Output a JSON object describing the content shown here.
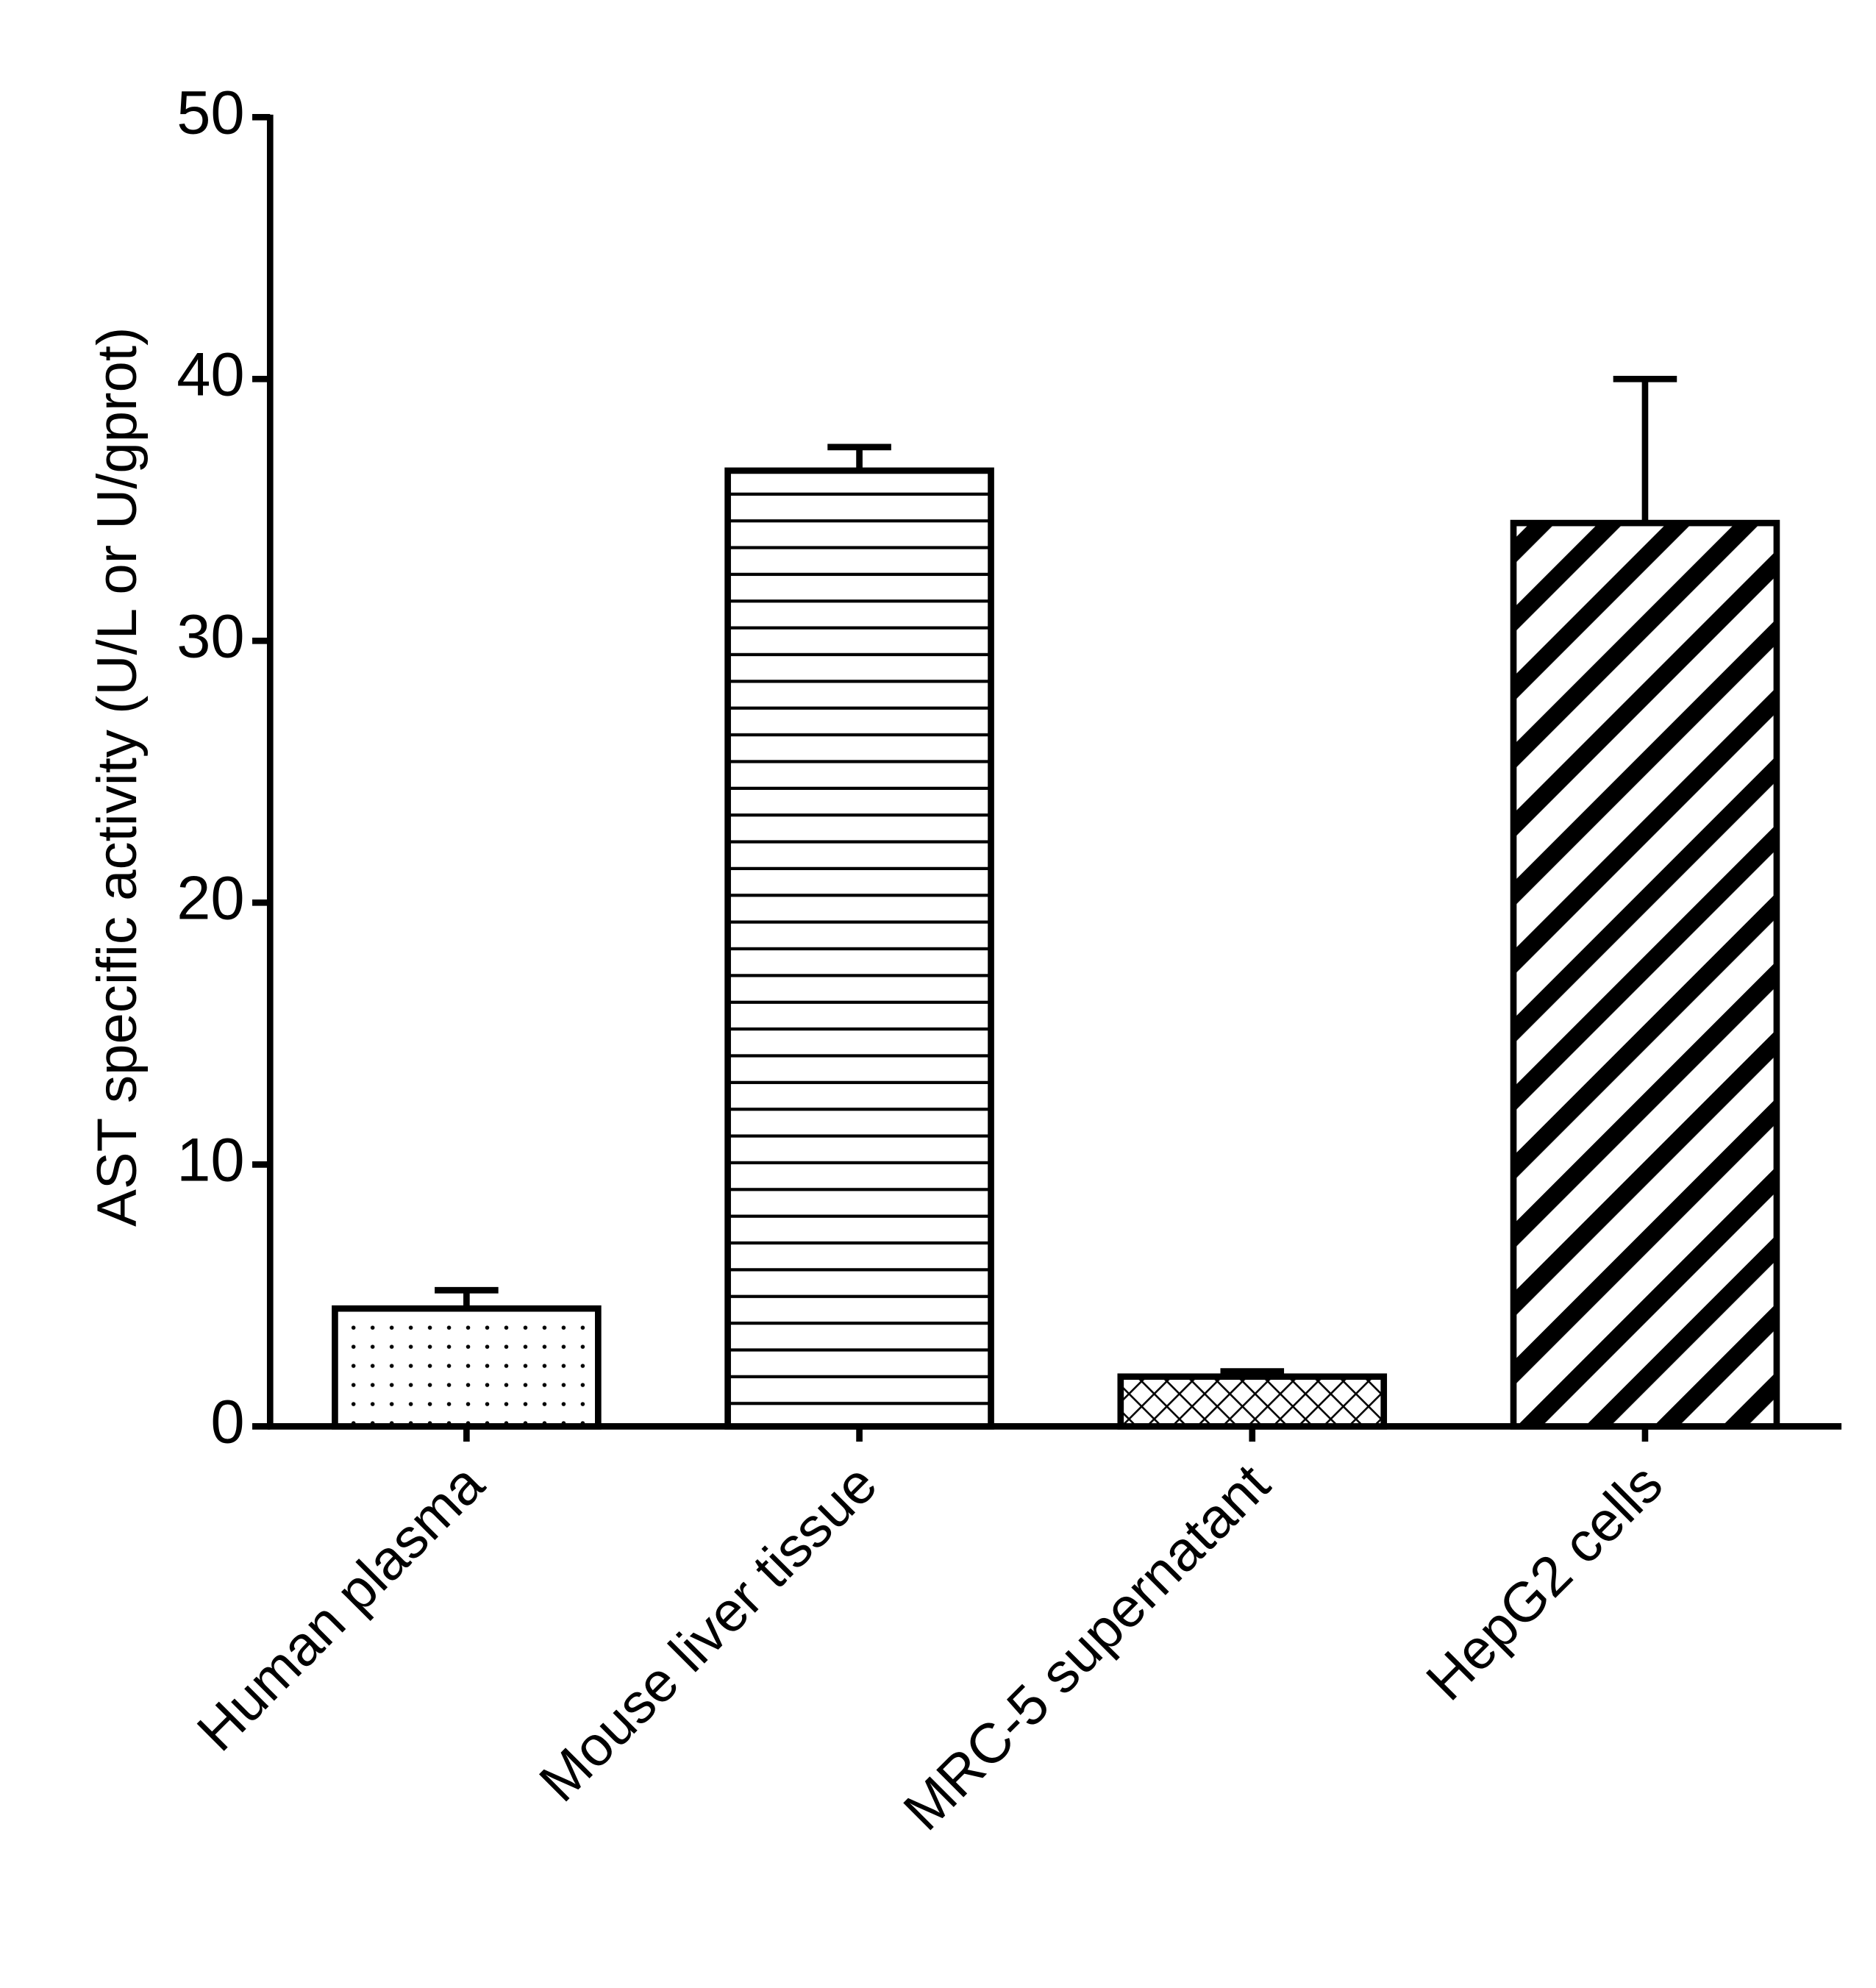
{
  "chart_data": {
    "type": "bar",
    "y_label": "AST specific activity (U/L or U/gprot)",
    "categories": [
      "Human plasma",
      "Mouse liver tissue",
      "MRC-5 supernatant",
      "HepG2 cells"
    ],
    "values": [
      4.5,
      36.5,
      1.9,
      34.5
    ],
    "errors": [
      0.7,
      0.9,
      0.2,
      5.5
    ],
    "fill_patterns": [
      "dots",
      "horizontal",
      "crosshatch",
      "diagonal"
    ],
    "color": "#000000",
    "ylim": [
      0,
      50
    ],
    "yticks": [
      0,
      10,
      20,
      30,
      40,
      50
    ]
  }
}
